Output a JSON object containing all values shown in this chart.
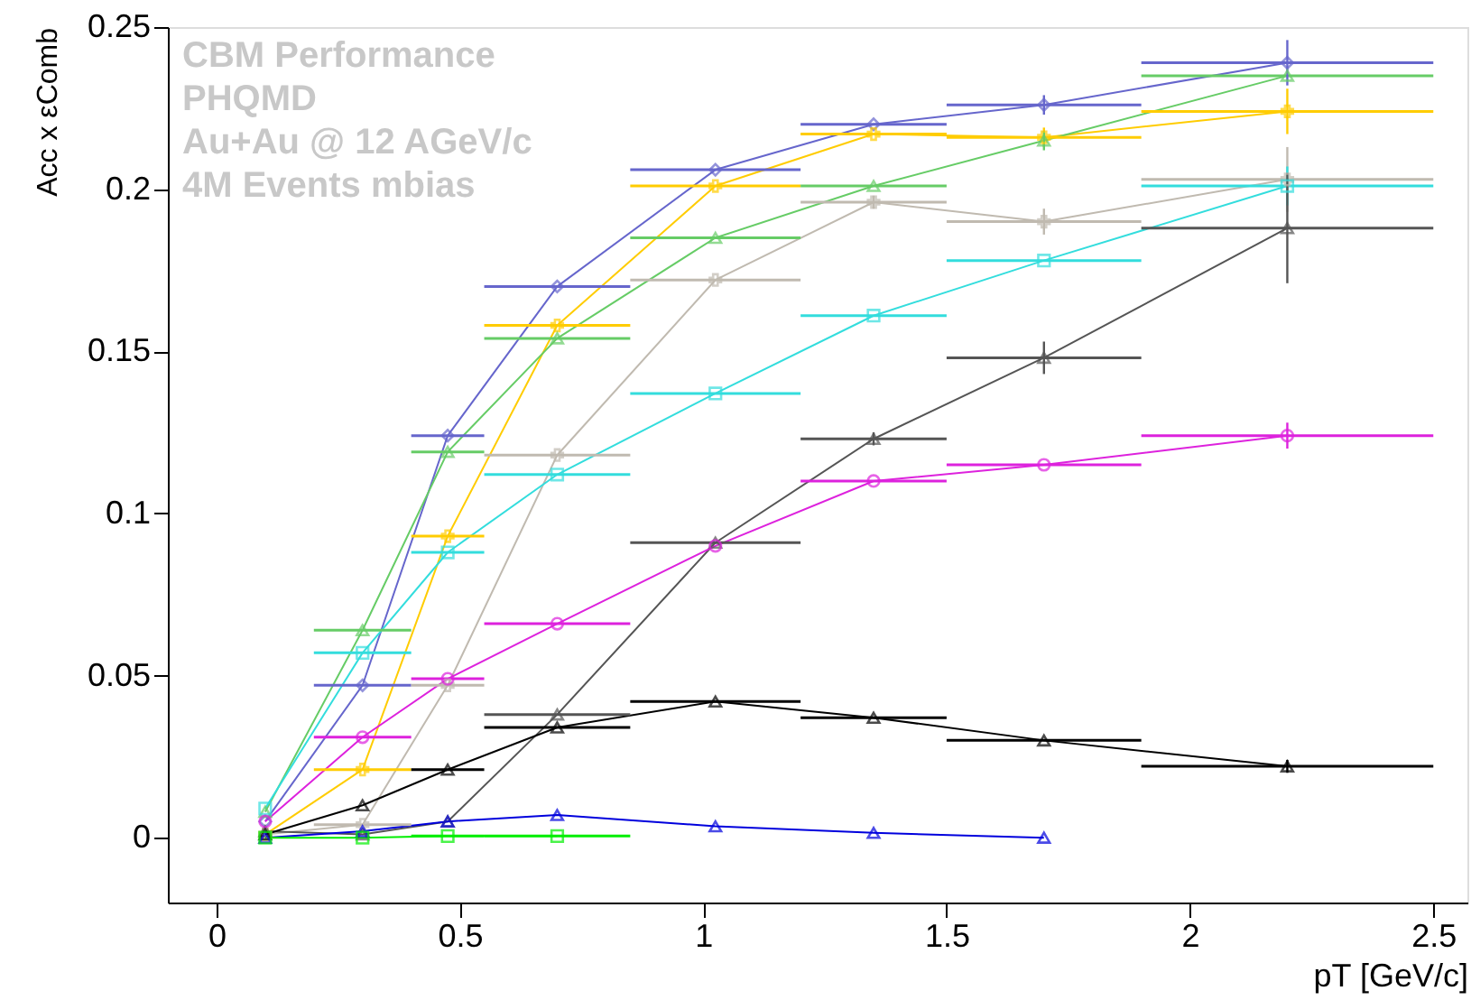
{
  "chart_data": {
    "type": "line",
    "xlabel": "pT [GeV/c]",
    "ylabel": "Acc x εComb",
    "annotations": [
      "CBM Performance",
      "PHQMD",
      "Au+Au @ 12 AGeV/c",
      "4M Events mbias"
    ],
    "x": [
      0.1,
      0.3,
      0.475,
      0.7,
      1.025,
      1.35,
      1.7,
      2.2
    ],
    "xlim": [
      -0.1,
      2.57
    ],
    "ylim": [
      -0.02,
      0.25
    ],
    "xticks": [
      0,
      0.5,
      1,
      1.5,
      2,
      2.5
    ],
    "yticks": [
      0,
      0.05,
      0.1,
      0.15,
      0.2,
      0.25
    ],
    "grid": false,
    "line_style": "solid",
    "series": [
      {
        "color": "#6666cc",
        "marker": "diamond",
        "values": [
          0.005,
          0.047,
          0.124,
          0.17,
          0.206,
          0.22,
          0.226,
          0.239
        ],
        "errors": [
          null,
          null,
          null,
          null,
          null,
          null,
          0.003,
          0.007
        ],
        "xerrors": [
          null,
          [
            0.2,
            0.4
          ],
          [
            0.4,
            0.55
          ],
          [
            0.55,
            0.85
          ],
          [
            0.85,
            1.2
          ],
          [
            1.2,
            1.5
          ],
          [
            1.5,
            1.9
          ],
          [
            1.9,
            2.5
          ]
        ]
      },
      {
        "color": "#ffcc00",
        "marker": "cross",
        "values": [
          0.001,
          0.021,
          0.093,
          0.158,
          0.201,
          0.217,
          0.216,
          0.224
        ],
        "errors": [
          null,
          null,
          null,
          null,
          null,
          null,
          0.003,
          0.007
        ],
        "xerrors": [
          null,
          [
            0.2,
            0.4
          ],
          [
            0.4,
            0.55
          ],
          [
            0.55,
            0.85
          ],
          [
            0.85,
            1.2
          ],
          [
            1.2,
            1.5
          ],
          [
            1.5,
            1.9
          ],
          [
            1.9,
            2.5
          ]
        ]
      },
      {
        "color": "#66cc66",
        "marker": "triangle",
        "values": [
          0.008,
          0.064,
          0.119,
          0.154,
          0.185,
          0.201,
          0.215,
          0.235
        ],
        "errors": [
          null,
          null,
          null,
          null,
          null,
          null,
          0.003,
          null
        ],
        "xerrors": [
          null,
          [
            0.2,
            0.4
          ],
          [
            0.4,
            0.55
          ],
          [
            0.55,
            0.85
          ],
          [
            0.85,
            1.2
          ],
          [
            1.2,
            1.5
          ],
          null,
          [
            1.9,
            2.5
          ]
        ]
      },
      {
        "color": "#c0bab0",
        "marker": "cross",
        "values": [
          0.001,
          0.004,
          0.047,
          0.118,
          0.172,
          0.196,
          0.19,
          0.203
        ],
        "errors": [
          null,
          null,
          null,
          null,
          null,
          0.002,
          0.004,
          0.01
        ],
        "xerrors": [
          null,
          [
            0.2,
            0.4
          ],
          [
            0.4,
            0.55
          ],
          [
            0.55,
            0.85
          ],
          [
            0.85,
            1.2
          ],
          [
            1.2,
            1.5
          ],
          [
            1.5,
            1.9
          ],
          [
            1.9,
            2.5
          ]
        ]
      },
      {
        "color": "#33dddd",
        "marker": "square",
        "values": [
          0.009,
          0.057,
          0.088,
          0.112,
          0.137,
          0.161,
          0.178,
          0.201
        ],
        "errors": [
          null,
          null,
          null,
          null,
          null,
          null,
          null,
          0.006
        ],
        "xerrors": [
          null,
          [
            0.2,
            0.4
          ],
          [
            0.4,
            0.55
          ],
          [
            0.55,
            0.85
          ],
          [
            0.85,
            1.2
          ],
          [
            1.2,
            1.5
          ],
          [
            1.5,
            1.9
          ],
          [
            1.9,
            2.5
          ]
        ]
      },
      {
        "color": "#555555",
        "marker": "triangle",
        "values": [
          0.002,
          0.001,
          0.005,
          0.038,
          0.091,
          0.123,
          0.148,
          0.188
        ],
        "errors": [
          null,
          null,
          null,
          null,
          null,
          0.002,
          0.005,
          0.017
        ],
        "xerrors": [
          null,
          null,
          null,
          [
            0.55,
            0.85
          ],
          [
            0.85,
            1.2
          ],
          [
            1.2,
            1.5
          ],
          [
            1.5,
            1.9
          ],
          [
            1.9,
            2.5
          ]
        ]
      },
      {
        "color": "#dd22dd",
        "marker": "circle",
        "values": [
          0.005,
          0.031,
          0.049,
          0.066,
          0.09,
          0.11,
          0.115,
          0.124
        ],
        "errors": [
          null,
          null,
          null,
          null,
          null,
          null,
          null,
          0.004
        ],
        "xerrors": [
          null,
          [
            0.2,
            0.4
          ],
          [
            0.4,
            0.55
          ],
          [
            0.55,
            0.85
          ],
          null,
          [
            1.2,
            1.5
          ],
          [
            1.5,
            1.9
          ],
          [
            1.9,
            2.5
          ]
        ]
      },
      {
        "color": "#000000",
        "marker": "triangle",
        "values": [
          0.001,
          0.01,
          0.021,
          0.034,
          0.042,
          0.037,
          0.03,
          0.022
        ],
        "errors": [
          null,
          null,
          null,
          null,
          null,
          null,
          null,
          0.002
        ],
        "xerrors": [
          null,
          null,
          [
            0.4,
            0.55
          ],
          [
            0.55,
            0.85
          ],
          [
            0.85,
            1.2
          ],
          [
            1.2,
            1.5
          ],
          [
            1.5,
            1.9
          ],
          [
            1.9,
            2.5
          ]
        ]
      },
      {
        "color": "#0000dd",
        "marker": "triangle",
        "x": [
          0.1,
          0.3,
          0.475,
          0.7,
          1.025,
          1.35,
          1.7
        ],
        "values": [
          0.0,
          0.002,
          0.005,
          0.007,
          0.0035,
          0.0015,
          0.0
        ]
      },
      {
        "color": "#00ee00",
        "marker": "square",
        "x": [
          0.1,
          0.3,
          0.475,
          0.7
        ],
        "values": [
          0.0,
          0.0,
          0.0005,
          0.0005
        ],
        "xerrors": [
          null,
          null,
          [
            0.4,
            0.55
          ],
          [
            0.55,
            0.85
          ]
        ]
      }
    ]
  }
}
